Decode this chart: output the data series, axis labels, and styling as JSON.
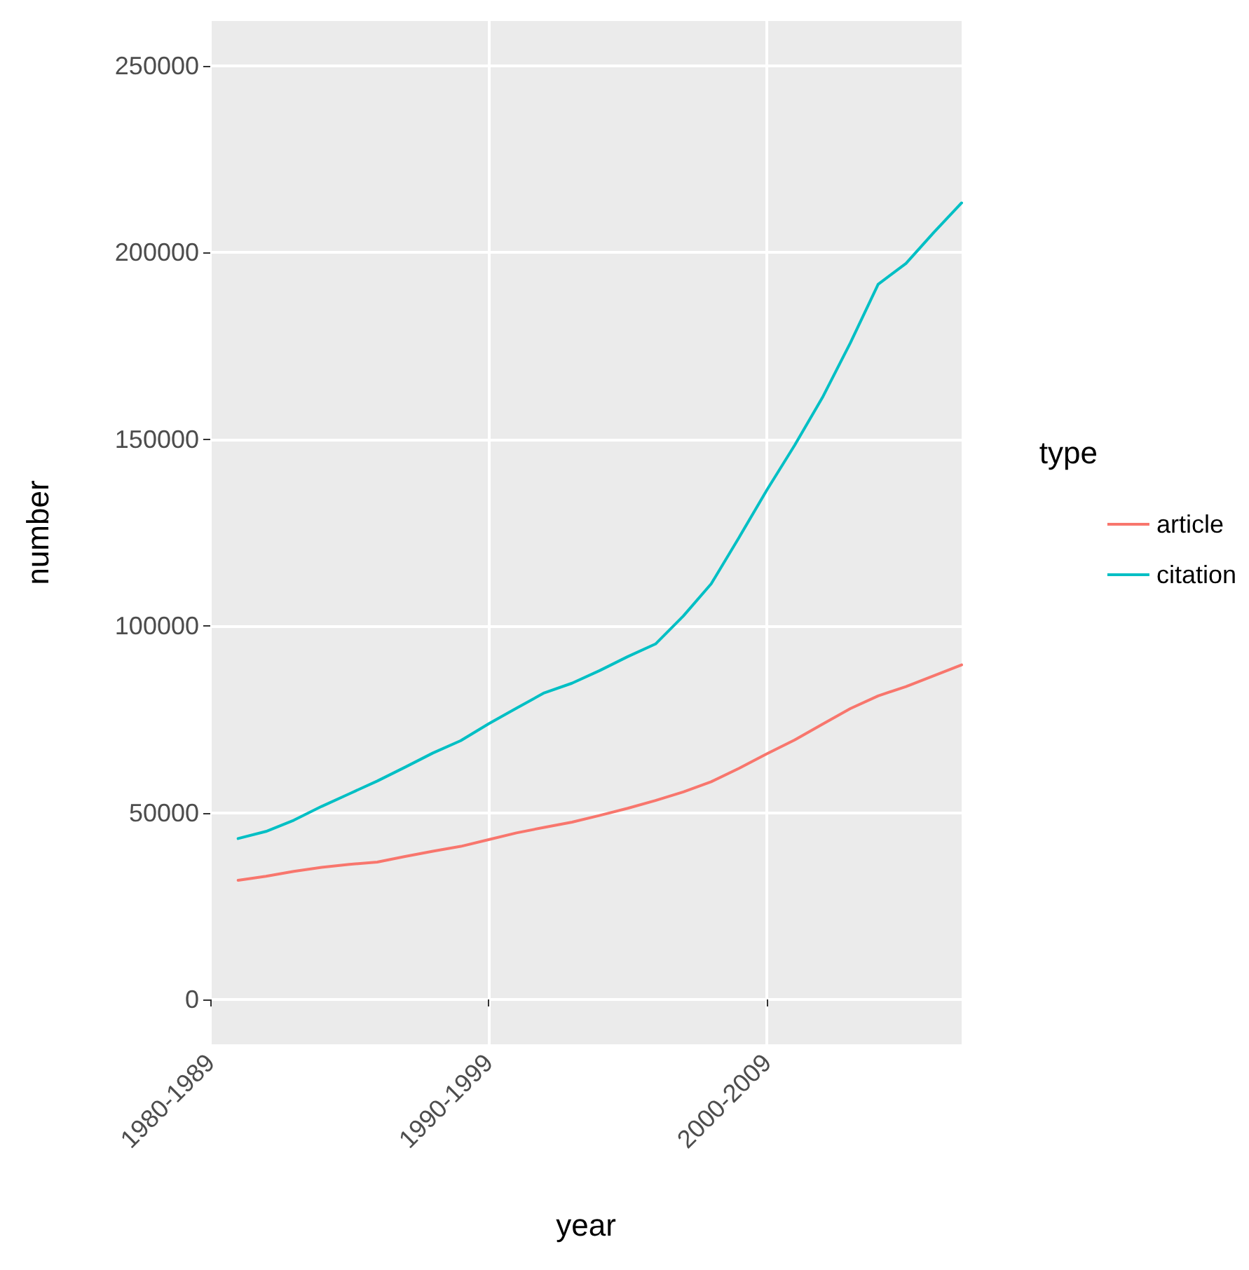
{
  "chart_data": {
    "type": "line",
    "xlabel": "year",
    "ylabel": "number",
    "legend_title": "type",
    "categories": [
      "1980-1989",
      null,
      null,
      null,
      null,
      null,
      null,
      null,
      null,
      null,
      "1990-1999",
      null,
      null,
      null,
      null,
      null,
      null,
      null,
      null,
      null,
      "2000-2009",
      null,
      null,
      null,
      null,
      null,
      null,
      null
    ],
    "series": [
      {
        "name": "article",
        "color": "#f8766d",
        "values": [
          null,
          31900,
          33000,
          34300,
          35400,
          36200,
          36800,
          38300,
          39700,
          41000,
          42800,
          44600,
          46100,
          47500,
          49300,
          51200,
          53300,
          55600,
          58300,
          61900,
          65800,
          69500,
          73700,
          77900,
          81300,
          83800,
          86700,
          89600
        ]
      },
      {
        "name": "citation",
        "color": "#00bfc4",
        "values": [
          null,
          43100,
          45000,
          48000,
          51700,
          55100,
          58500,
          62200,
          66000,
          69300,
          73800,
          78000,
          82100,
          84700,
          88100,
          91800,
          95200,
          102700,
          111300,
          123700,
          136400,
          148400,
          161200,
          175800,
          191500,
          197100,
          205400,
          213300
        ]
      }
    ],
    "ylim": [
      -12000,
      262000
    ],
    "yticks": [
      0,
      50000,
      100000,
      150000,
      200000,
      250000
    ],
    "grid": true,
    "legend": "right",
    "marker": "none",
    "line_style": "solid"
  }
}
